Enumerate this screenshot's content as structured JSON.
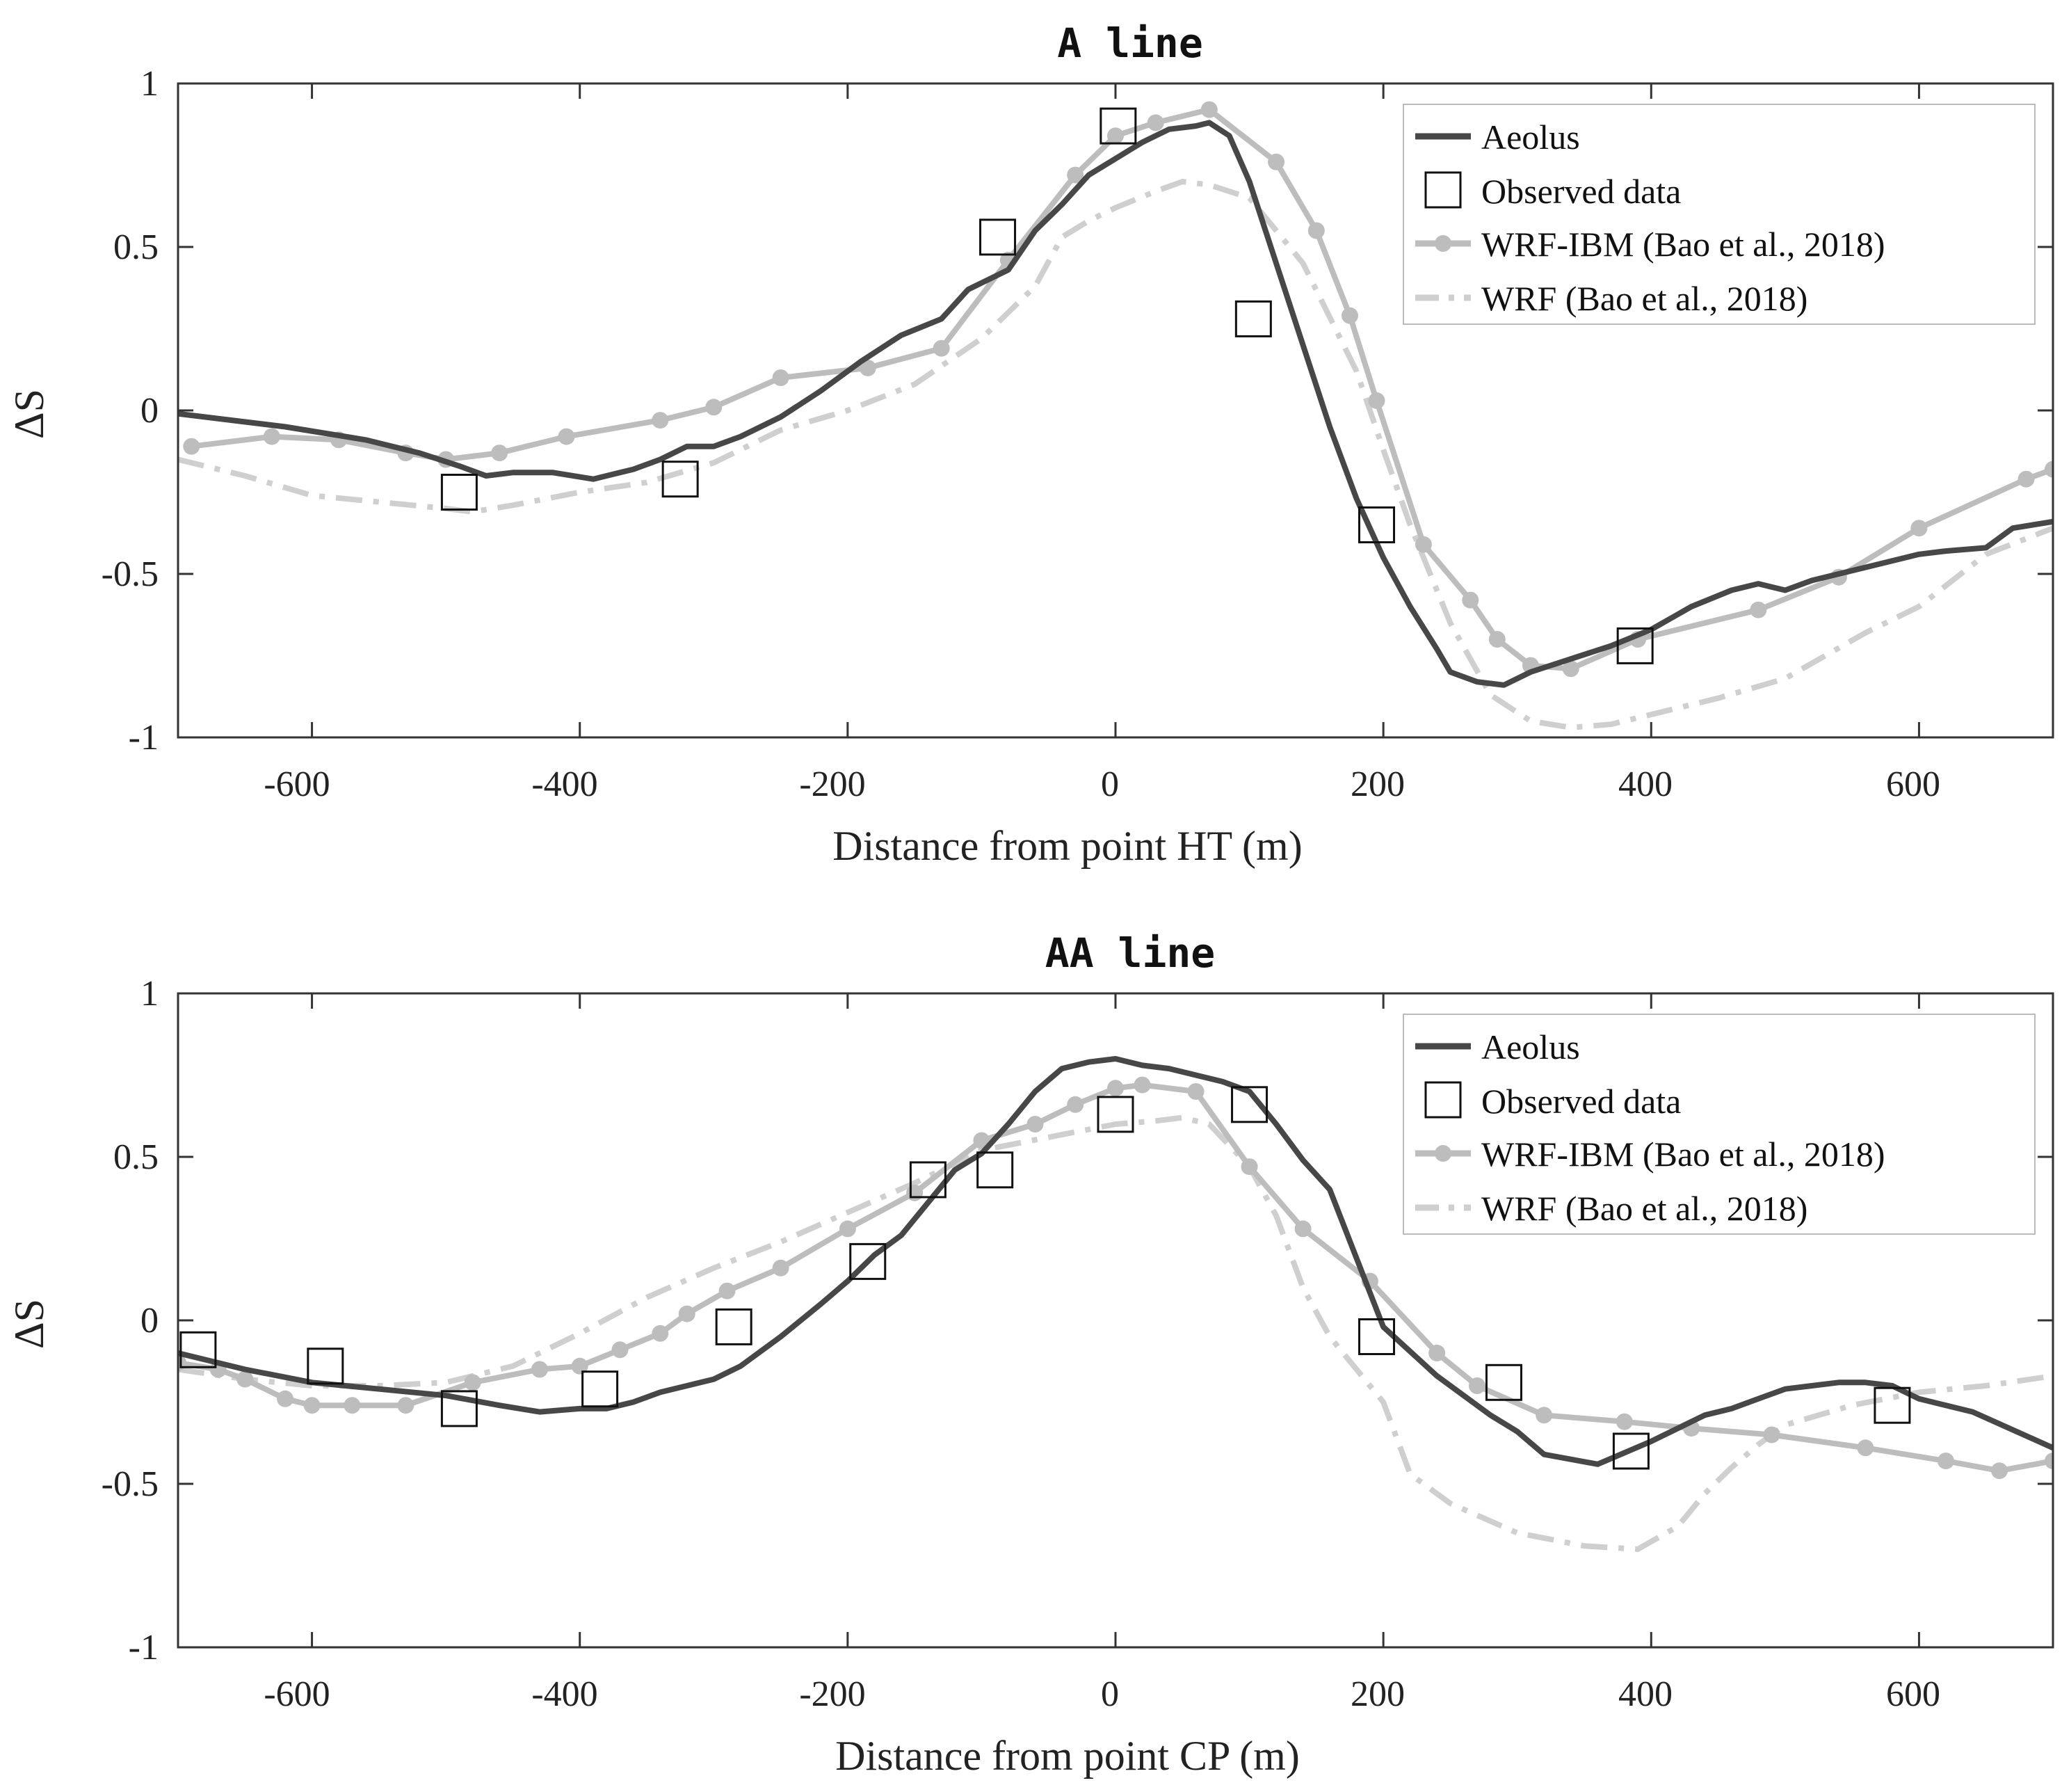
{
  "colors": {
    "aeolus": "#474747",
    "wrf_ibm": "#bdbdbd",
    "wrf": "#cfcfcf",
    "observed": "#111111",
    "axis": "#333333"
  },
  "chart_data": [
    {
      "type": "line",
      "title": "A line",
      "xlabel": "Distance from point HT (m)",
      "ylabel": "ΔS",
      "xlim": [
        -700,
        700
      ],
      "ylim": [
        -1,
        1
      ],
      "xticks": [
        -600,
        -400,
        -200,
        0,
        200,
        400,
        600
      ],
      "xtick_labels": [
        "-600",
        "-400",
        "-200",
        "0",
        "200",
        "400",
        "600"
      ],
      "yticks": [
        -1,
        -0.5,
        0,
        0.5,
        1
      ],
      "ytick_labels": [
        "-1",
        "-0.5",
        "0",
        "0.5",
        "1"
      ],
      "legend_position": "top-right",
      "series": [
        {
          "name": "Aeolus",
          "style": "solid",
          "x": [
            -700,
            -620,
            -560,
            -520,
            -490,
            -470,
            -450,
            -420,
            -390,
            -360,
            -340,
            -320,
            -300,
            -280,
            -250,
            -220,
            -190,
            -160,
            -130,
            -110,
            -100,
            -80,
            -60,
            -40,
            -20,
            0,
            20,
            40,
            60,
            70,
            85,
            100,
            120,
            140,
            160,
            180,
            200,
            220,
            240,
            250,
            270,
            290,
            310,
            340,
            370,
            400,
            430,
            460,
            480,
            500,
            520,
            560,
            600,
            620,
            650,
            670,
            700
          ],
          "y": [
            -0.01,
            -0.05,
            -0.09,
            -0.13,
            -0.17,
            -0.2,
            -0.19,
            -0.19,
            -0.21,
            -0.18,
            -0.15,
            -0.11,
            -0.11,
            -0.08,
            -0.02,
            0.06,
            0.15,
            0.23,
            0.28,
            0.37,
            0.39,
            0.43,
            0.55,
            0.63,
            0.72,
            0.77,
            0.82,
            0.86,
            0.87,
            0.88,
            0.84,
            0.7,
            0.45,
            0.2,
            -0.05,
            -0.27,
            -0.45,
            -0.6,
            -0.73,
            -0.8,
            -0.83,
            -0.84,
            -0.8,
            -0.76,
            -0.72,
            -0.67,
            -0.6,
            -0.55,
            -0.53,
            -0.55,
            -0.52,
            -0.48,
            -0.44,
            -0.43,
            -0.42,
            -0.36,
            -0.34
          ]
        },
        {
          "name": "Observed data",
          "style": "marker",
          "x": [
            -490,
            -325,
            -88,
            2,
            103,
            195,
            388
          ],
          "y": [
            -0.25,
            -0.21,
            0.53,
            0.87,
            0.28,
            -0.35,
            -0.72
          ]
        },
        {
          "name": "WRF-IBM (Bao et al., 2018)",
          "style": "solid-dot",
          "x": [
            -690,
            -630,
            -580,
            -530,
            -500,
            -460,
            -410,
            -340,
            -300,
            -250,
            -185,
            -130,
            -80,
            -30,
            0,
            30,
            70,
            120,
            150,
            175,
            195,
            230,
            265,
            285,
            310,
            340,
            390,
            480,
            540,
            600,
            680,
            700
          ],
          "y": [
            -0.11,
            -0.08,
            -0.09,
            -0.13,
            -0.15,
            -0.13,
            -0.08,
            -0.03,
            0.01,
            0.1,
            0.13,
            0.19,
            0.46,
            0.72,
            0.84,
            0.88,
            0.92,
            0.76,
            0.55,
            0.29,
            0.03,
            -0.41,
            -0.58,
            -0.7,
            -0.78,
            -0.79,
            -0.7,
            -0.61,
            -0.51,
            -0.36,
            -0.21,
            -0.18
          ]
        },
        {
          "name": "WRF (Bao et al., 2018)",
          "style": "dashdot",
          "x": [
            -700,
            -650,
            -600,
            -550,
            -500,
            -480,
            -450,
            -400,
            -350,
            -300,
            -250,
            -200,
            -150,
            -100,
            -60,
            -40,
            -20,
            0,
            30,
            50,
            70,
            100,
            140,
            180,
            200,
            220,
            250,
            280,
            310,
            340,
            370,
            400,
            450,
            500,
            560,
            600,
            650,
            700
          ],
          "y": [
            -0.15,
            -0.2,
            -0.26,
            -0.28,
            -0.3,
            -0.31,
            -0.29,
            -0.25,
            -0.22,
            -0.16,
            -0.06,
            0.0,
            0.08,
            0.22,
            0.38,
            0.53,
            0.58,
            0.62,
            0.67,
            0.7,
            0.69,
            0.65,
            0.45,
            0.12,
            -0.12,
            -0.35,
            -0.65,
            -0.87,
            -0.95,
            -0.97,
            -0.96,
            -0.93,
            -0.88,
            -0.82,
            -0.68,
            -0.6,
            -0.44,
            -0.36
          ]
        }
      ]
    },
    {
      "type": "line",
      "title": "AA line",
      "xlabel": "Distance from point CP (m)",
      "ylabel": "ΔS",
      "xlim": [
        -700,
        700
      ],
      "ylim": [
        -1,
        1
      ],
      "xticks": [
        -600,
        -400,
        -200,
        0,
        200,
        400,
        600
      ],
      "xtick_labels": [
        "-600",
        "-400",
        "-200",
        "0",
        "200",
        "400",
        "600"
      ],
      "yticks": [
        -1,
        -0.5,
        0,
        0.5,
        1
      ],
      "ytick_labels": [
        "-1",
        "-0.5",
        "0",
        "0.5",
        "1"
      ],
      "legend_position": "top-right",
      "series": [
        {
          "name": "Aeolus",
          "style": "solid",
          "x": [
            -700,
            -650,
            -600,
            -550,
            -500,
            -460,
            -430,
            -400,
            -380,
            -360,
            -340,
            -320,
            -300,
            -280,
            -250,
            -220,
            -200,
            -180,
            -160,
            -140,
            -120,
            -100,
            -80,
            -60,
            -40,
            -20,
            0,
            20,
            40,
            60,
            80,
            100,
            120,
            140,
            160,
            200,
            240,
            280,
            300,
            320,
            360,
            400,
            420,
            440,
            460,
            480,
            500,
            520,
            540,
            560,
            580,
            600,
            640,
            700
          ],
          "y": [
            -0.1,
            -0.15,
            -0.19,
            -0.21,
            -0.23,
            -0.26,
            -0.28,
            -0.27,
            -0.27,
            -0.25,
            -0.22,
            -0.2,
            -0.18,
            -0.14,
            -0.05,
            0.05,
            0.12,
            0.2,
            0.26,
            0.36,
            0.46,
            0.51,
            0.6,
            0.7,
            0.77,
            0.79,
            0.8,
            0.78,
            0.77,
            0.75,
            0.73,
            0.7,
            0.6,
            0.49,
            0.4,
            -0.02,
            -0.17,
            -0.29,
            -0.34,
            -0.41,
            -0.44,
            -0.37,
            -0.33,
            -0.29,
            -0.27,
            -0.24,
            -0.21,
            -0.2,
            -0.19,
            -0.19,
            -0.2,
            -0.24,
            -0.28,
            -0.39
          ]
        },
        {
          "name": "Observed data",
          "style": "marker",
          "x": [
            -685,
            -590,
            -490,
            -385,
            -285,
            -185,
            -140,
            -90,
            0,
            100,
            195,
            290,
            385,
            580
          ],
          "y": [
            -0.09,
            -0.14,
            -0.27,
            -0.21,
            -0.02,
            0.18,
            0.43,
            0.46,
            0.63,
            0.66,
            -0.05,
            -0.19,
            -0.4,
            -0.26
          ]
        },
        {
          "name": "WRF-IBM (Bao et al., 2018)",
          "style": "solid-dot",
          "x": [
            -700,
            -670,
            -650,
            -620,
            -600,
            -570,
            -530,
            -480,
            -430,
            -400,
            -370,
            -340,
            -320,
            -290,
            -250,
            -200,
            -150,
            -100,
            -60,
            -30,
            0,
            20,
            60,
            100,
            140,
            190,
            240,
            270,
            320,
            380,
            430,
            490,
            560,
            620,
            660,
            700
          ],
          "y": [
            -0.13,
            -0.15,
            -0.18,
            -0.24,
            -0.26,
            -0.26,
            -0.26,
            -0.19,
            -0.15,
            -0.14,
            -0.09,
            -0.04,
            0.02,
            0.09,
            0.16,
            0.28,
            0.39,
            0.55,
            0.6,
            0.66,
            0.71,
            0.72,
            0.7,
            0.47,
            0.28,
            0.12,
            -0.1,
            -0.2,
            -0.29,
            -0.31,
            -0.33,
            -0.35,
            -0.39,
            -0.43,
            -0.46,
            -0.43
          ]
        },
        {
          "name": "WRF (Bao et al., 2018)",
          "style": "dashdot",
          "x": [
            -700,
            -650,
            -600,
            -550,
            -500,
            -450,
            -400,
            -350,
            -300,
            -250,
            -200,
            -150,
            -100,
            -50,
            0,
            30,
            50,
            70,
            100,
            120,
            140,
            160,
            180,
            200,
            220,
            250,
            300,
            350,
            390,
            420,
            440,
            460,
            480,
            500,
            550,
            600,
            650,
            700
          ],
          "y": [
            -0.15,
            -0.18,
            -0.2,
            -0.2,
            -0.19,
            -0.14,
            -0.04,
            0.07,
            0.16,
            0.24,
            0.33,
            0.42,
            0.52,
            0.56,
            0.6,
            0.61,
            0.62,
            0.6,
            0.47,
            0.32,
            0.1,
            -0.05,
            -0.15,
            -0.25,
            -0.47,
            -0.56,
            -0.65,
            -0.69,
            -0.7,
            -0.63,
            -0.53,
            -0.45,
            -0.38,
            -0.32,
            -0.26,
            -0.22,
            -0.2,
            -0.17
          ]
        }
      ]
    }
  ]
}
